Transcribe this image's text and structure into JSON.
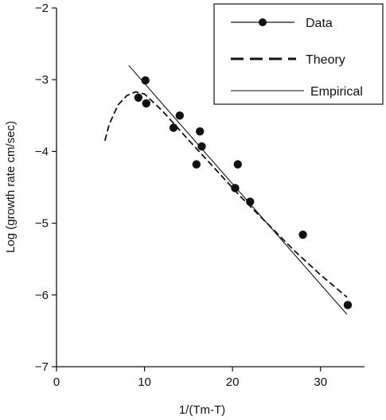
{
  "chart_data": {
    "type": "scatter",
    "xlabel": "1/(Tm-T)",
    "ylabel": "Log (growth rate cm/sec)",
    "xlim": [
      0,
      35
    ],
    "ylim": [
      -7,
      -2
    ],
    "xticks": [
      0,
      10,
      20,
      30
    ],
    "yticks": [
      -7,
      -6,
      -5,
      -4,
      -3,
      -2
    ],
    "xtick_labels": [
      "0",
      "10",
      "20",
      "30"
    ],
    "ytick_labels": [
      "−7",
      "−6",
      "−5",
      "−4",
      "−3",
      "−2"
    ],
    "legend_position": "top-right",
    "grid": false,
    "series": [
      {
        "name": "Data",
        "kind": "markers",
        "x": [
          9.3,
          10.1,
          10.2,
          13.3,
          14.0,
          15.9,
          16.3,
          16.5,
          20.3,
          20.6,
          22.0,
          28.0,
          33.1
        ],
        "y": [
          -3.25,
          -3.01,
          -3.33,
          -3.67,
          -3.5,
          -4.18,
          -3.72,
          -3.93,
          -4.51,
          -4.18,
          -4.7,
          -5.16,
          -6.14
        ]
      },
      {
        "name": "Theory",
        "kind": "dashed",
        "x": [
          5.5,
          6.0,
          7.0,
          8.0,
          9.0,
          10.0,
          12.0,
          15.0,
          18.0,
          21.0,
          24.0,
          27.0,
          30.0,
          33.0
        ],
        "y": [
          -3.85,
          -3.62,
          -3.35,
          -3.22,
          -3.17,
          -3.2,
          -3.43,
          -3.84,
          -4.24,
          -4.64,
          -5.01,
          -5.38,
          -5.72,
          -6.03
        ]
      },
      {
        "name": "Empirical",
        "kind": "solid",
        "x": [
          8.2,
          33.0
        ],
        "y": [
          -2.8,
          -6.27
        ]
      }
    ]
  }
}
